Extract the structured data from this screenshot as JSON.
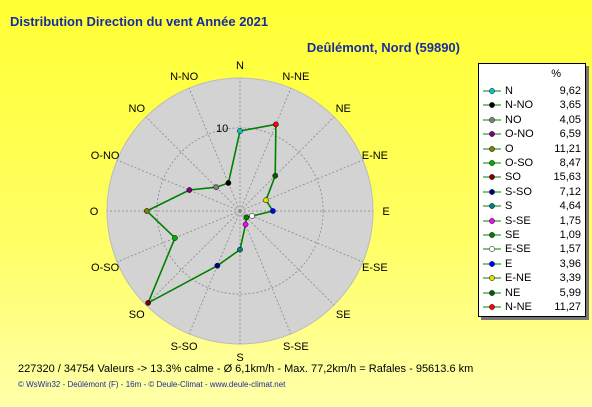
{
  "header": {
    "title": "Distribution Direction du vent   Année 2021",
    "location": "Deûlémont, Nord (59890)"
  },
  "chart_data": {
    "type": "radar",
    "directions": [
      "N",
      "N-NE",
      "NE",
      "E-NE",
      "E",
      "E-SE",
      "SE",
      "S-SE",
      "S",
      "S-SO",
      "SO",
      "O-SO",
      "O",
      "O-NO",
      "NO",
      "N-NO"
    ],
    "values": [
      9.62,
      11.27,
      5.99,
      3.39,
      3.96,
      1.57,
      1.09,
      1.75,
      4.64,
      7.12,
      15.63,
      8.47,
      11.21,
      6.59,
      4.05,
      3.65
    ],
    "unit": "%",
    "scale_label": "10",
    "rmax": 16,
    "line_color": "#008000",
    "disc_color": "#d3d3d3"
  },
  "legend": {
    "header": "%",
    "items": [
      {
        "name": "N",
        "value": "9,62",
        "color": "#00c8c8"
      },
      {
        "name": "N-NO",
        "value": "3,65",
        "color": "#000000"
      },
      {
        "name": "NO",
        "value": "4,05",
        "color": "#808080"
      },
      {
        "name": "O-NO",
        "value": "6,59",
        "color": "#800080"
      },
      {
        "name": "O",
        "value": "11,21",
        "color": "#808000"
      },
      {
        "name": "O-SO",
        "value": "8,47",
        "color": "#00b000"
      },
      {
        "name": "SO",
        "value": "15,63",
        "color": "#800000"
      },
      {
        "name": "S-SO",
        "value": "7,12",
        "color": "#000080"
      },
      {
        "name": "S",
        "value": "4,64",
        "color": "#008080"
      },
      {
        "name": "S-SE",
        "value": "1,75",
        "color": "#ff00ff"
      },
      {
        "name": "SE",
        "value": "1,09",
        "color": "#008000"
      },
      {
        "name": "E-SE",
        "value": "1,57",
        "color": "#ffffff"
      },
      {
        "name": "E",
        "value": "3,96",
        "color": "#0000ff"
      },
      {
        "name": "E-NE",
        "value": "3,39",
        "color": "#e0e000"
      },
      {
        "name": "NE",
        "value": "5,99",
        "color": "#006000"
      },
      {
        "name": "N-NE",
        "value": "11,27",
        "color": "#ff0000"
      }
    ]
  },
  "stats": "227320 / 34754 Valeurs  -> 13.3% calme   -   Ø 6,1km/h  -  Max. 77,2km/h = Rafales   -    95613.6 km",
  "footer": "© WsWin32  -  Deûlémont (F) - 16m  -  © Deule-Climat - www.deule-climat.net"
}
